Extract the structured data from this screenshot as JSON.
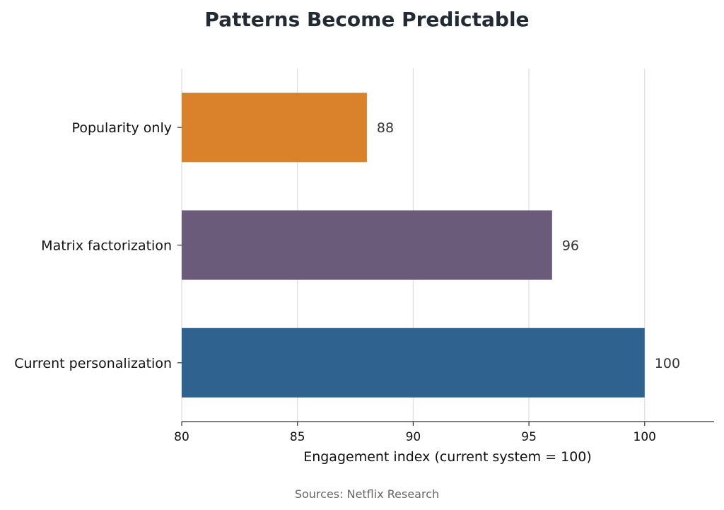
{
  "chart_data": {
    "type": "bar",
    "orientation": "horizontal",
    "title": "Patterns Become Predictable",
    "categories": [
      "Popularity only",
      "Matrix factorization",
      "Current personalization"
    ],
    "values": [
      88,
      96,
      100
    ],
    "value_labels": [
      "88",
      "96",
      "100"
    ],
    "colors": [
      "#D9822B",
      "#6B5B7B",
      "#30628F"
    ],
    "xlabel": "Engagement index (current system = 100)",
    "ylabel": "",
    "xlim": [
      80,
      103
    ],
    "xticks": [
      80,
      85,
      90,
      95,
      100
    ],
    "xtick_labels": [
      "80",
      "85",
      "90",
      "95",
      "100"
    ],
    "grid": "vertical",
    "legend": "none",
    "source": "Sources: Netflix Research"
  }
}
